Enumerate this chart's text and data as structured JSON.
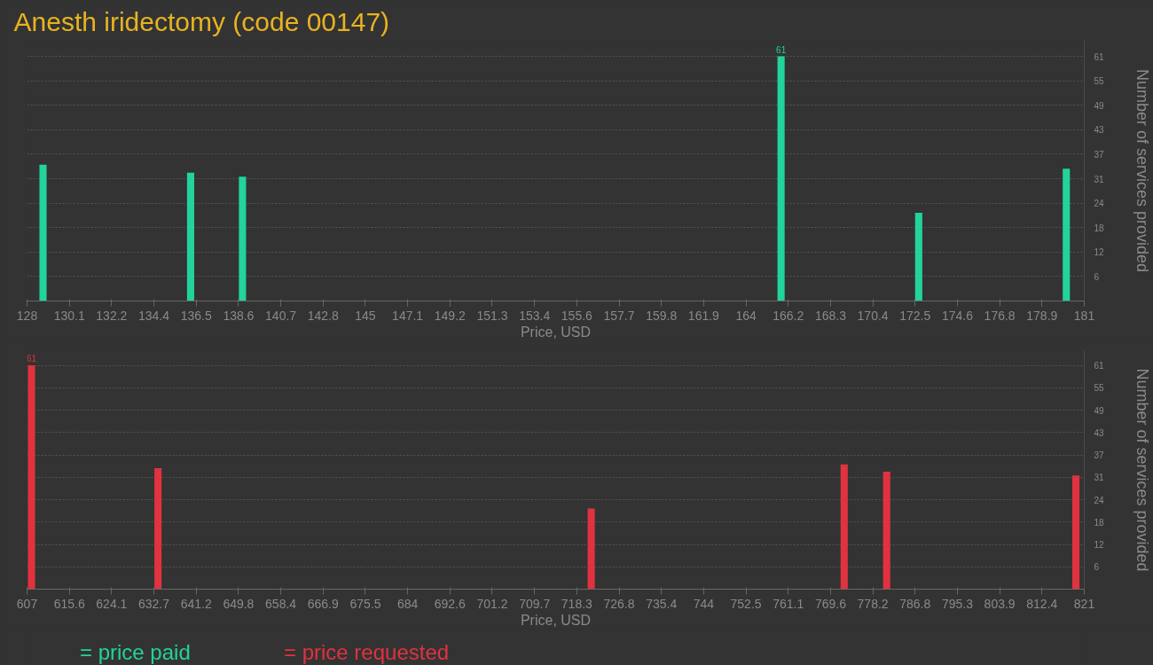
{
  "chart_data": [
    {
      "type": "bar",
      "title": "Anesth iridectomy (code 00147)",
      "xlabel": "Price, USD",
      "ylabel": "Number of services provided",
      "x": [
        128.8,
        136.2,
        138.8,
        165.8,
        172.7,
        180.1
      ],
      "series": [
        {
          "name": "= price paid",
          "color": "#22d39b",
          "values": [
            34,
            32,
            31,
            61,
            22,
            33
          ],
          "value_labels": [
            null,
            null,
            null,
            "61",
            null,
            null
          ]
        }
      ],
      "xlim": [
        128,
        181
      ],
      "ylim": [
        0,
        65
      ],
      "xticks": [
        128,
        {
          "value": 130.12,
          "label": "130.1"
        },
        {
          "value": 132.24,
          "label": "132.2"
        },
        {
          "value": 134.36,
          "label": "134.4"
        },
        {
          "value": 136.48,
          "label": "136.5"
        },
        138.6,
        {
          "value": 140.72,
          "label": "140.7"
        },
        {
          "value": 142.84,
          "label": "142.8"
        },
        {
          "value": 144.96,
          "label": "145"
        },
        {
          "value": 147.08,
          "label": "147.1"
        },
        149.2,
        {
          "value": 151.32,
          "label": "151.3"
        },
        {
          "value": 153.44,
          "label": "153.4"
        },
        {
          "value": 155.56,
          "label": "155.6"
        },
        {
          "value": 157.68,
          "label": "157.7"
        },
        159.8,
        {
          "value": 161.92,
          "label": "161.9"
        },
        {
          "value": 164.04,
          "label": "164"
        },
        {
          "value": 166.16,
          "label": "166.2"
        },
        {
          "value": 168.28,
          "label": "168.3"
        },
        170.4,
        {
          "value": 172.52,
          "label": "172.5"
        },
        {
          "value": 174.64,
          "label": "174.6"
        },
        {
          "value": 176.76,
          "label": "176.8"
        },
        {
          "value": 178.88,
          "label": "178.9"
        },
        181
      ],
      "yticks": [
        {
          "value": 6.1,
          "label": "6"
        },
        {
          "value": 12.2,
          "label": "12"
        },
        {
          "value": 18.3,
          "label": "18"
        },
        {
          "value": 24.4,
          "label": "24"
        },
        {
          "value": 30.5,
          "label": "31"
        },
        {
          "value": 36.6,
          "label": "37"
        },
        {
          "value": 42.7,
          "label": "43"
        },
        {
          "value": 48.8,
          "label": "49"
        },
        {
          "value": 54.9,
          "label": "55"
        },
        61
      ],
      "grid": "y",
      "legend": "bottom left"
    },
    {
      "type": "bar",
      "xlabel": "Price, USD",
      "ylabel": "Number of services provided",
      "x": [
        607.9,
        633.5,
        721.2,
        772.4,
        781.0,
        819.3
      ],
      "series": [
        {
          "name": "= price requested",
          "color": "#e0323f",
          "values": [
            61,
            33,
            22,
            34,
            32,
            31
          ],
          "value_labels": [
            "61",
            null,
            null,
            null,
            null,
            null
          ]
        }
      ],
      "xlim": [
        607,
        821
      ],
      "ylim": [
        0,
        65
      ],
      "xticks": [
        607,
        {
          "value": 615.56,
          "label": "615.6"
        },
        {
          "value": 624.12,
          "label": "624.1"
        },
        {
          "value": 632.68,
          "label": "632.7"
        },
        {
          "value": 641.24,
          "label": "641.2"
        },
        649.8,
        {
          "value": 658.36,
          "label": "658.4"
        },
        {
          "value": 666.92,
          "label": "666.9"
        },
        {
          "value": 675.48,
          "label": "675.5"
        },
        {
          "value": 684.04,
          "label": "684"
        },
        692.6,
        {
          "value": 701.16,
          "label": "701.2"
        },
        {
          "value": 709.72,
          "label": "709.7"
        },
        {
          "value": 718.28,
          "label": "718.3"
        },
        {
          "value": 726.84,
          "label": "726.8"
        },
        735.4,
        {
          "value": 743.96,
          "label": "744"
        },
        {
          "value": 752.52,
          "label": "752.5"
        },
        {
          "value": 761.08,
          "label": "761.1"
        },
        {
          "value": 769.64,
          "label": "769.6"
        },
        778.2,
        {
          "value": 786.76,
          "label": "786.8"
        },
        {
          "value": 795.32,
          "label": "795.3"
        },
        {
          "value": 803.88,
          "label": "803.9"
        },
        {
          "value": 812.44,
          "label": "812.4"
        },
        821
      ],
      "yticks": [
        {
          "value": 6.1,
          "label": "6"
        },
        {
          "value": 12.2,
          "label": "12"
        },
        {
          "value": 18.3,
          "label": "18"
        },
        {
          "value": 24.4,
          "label": "24"
        },
        {
          "value": 30.5,
          "label": "31"
        },
        {
          "value": 36.6,
          "label": "37"
        },
        {
          "value": 42.7,
          "label": "43"
        },
        {
          "value": 48.8,
          "label": "49"
        },
        {
          "value": 54.9,
          "label": "55"
        },
        61
      ],
      "grid": "y",
      "legend": "bottom left"
    }
  ]
}
